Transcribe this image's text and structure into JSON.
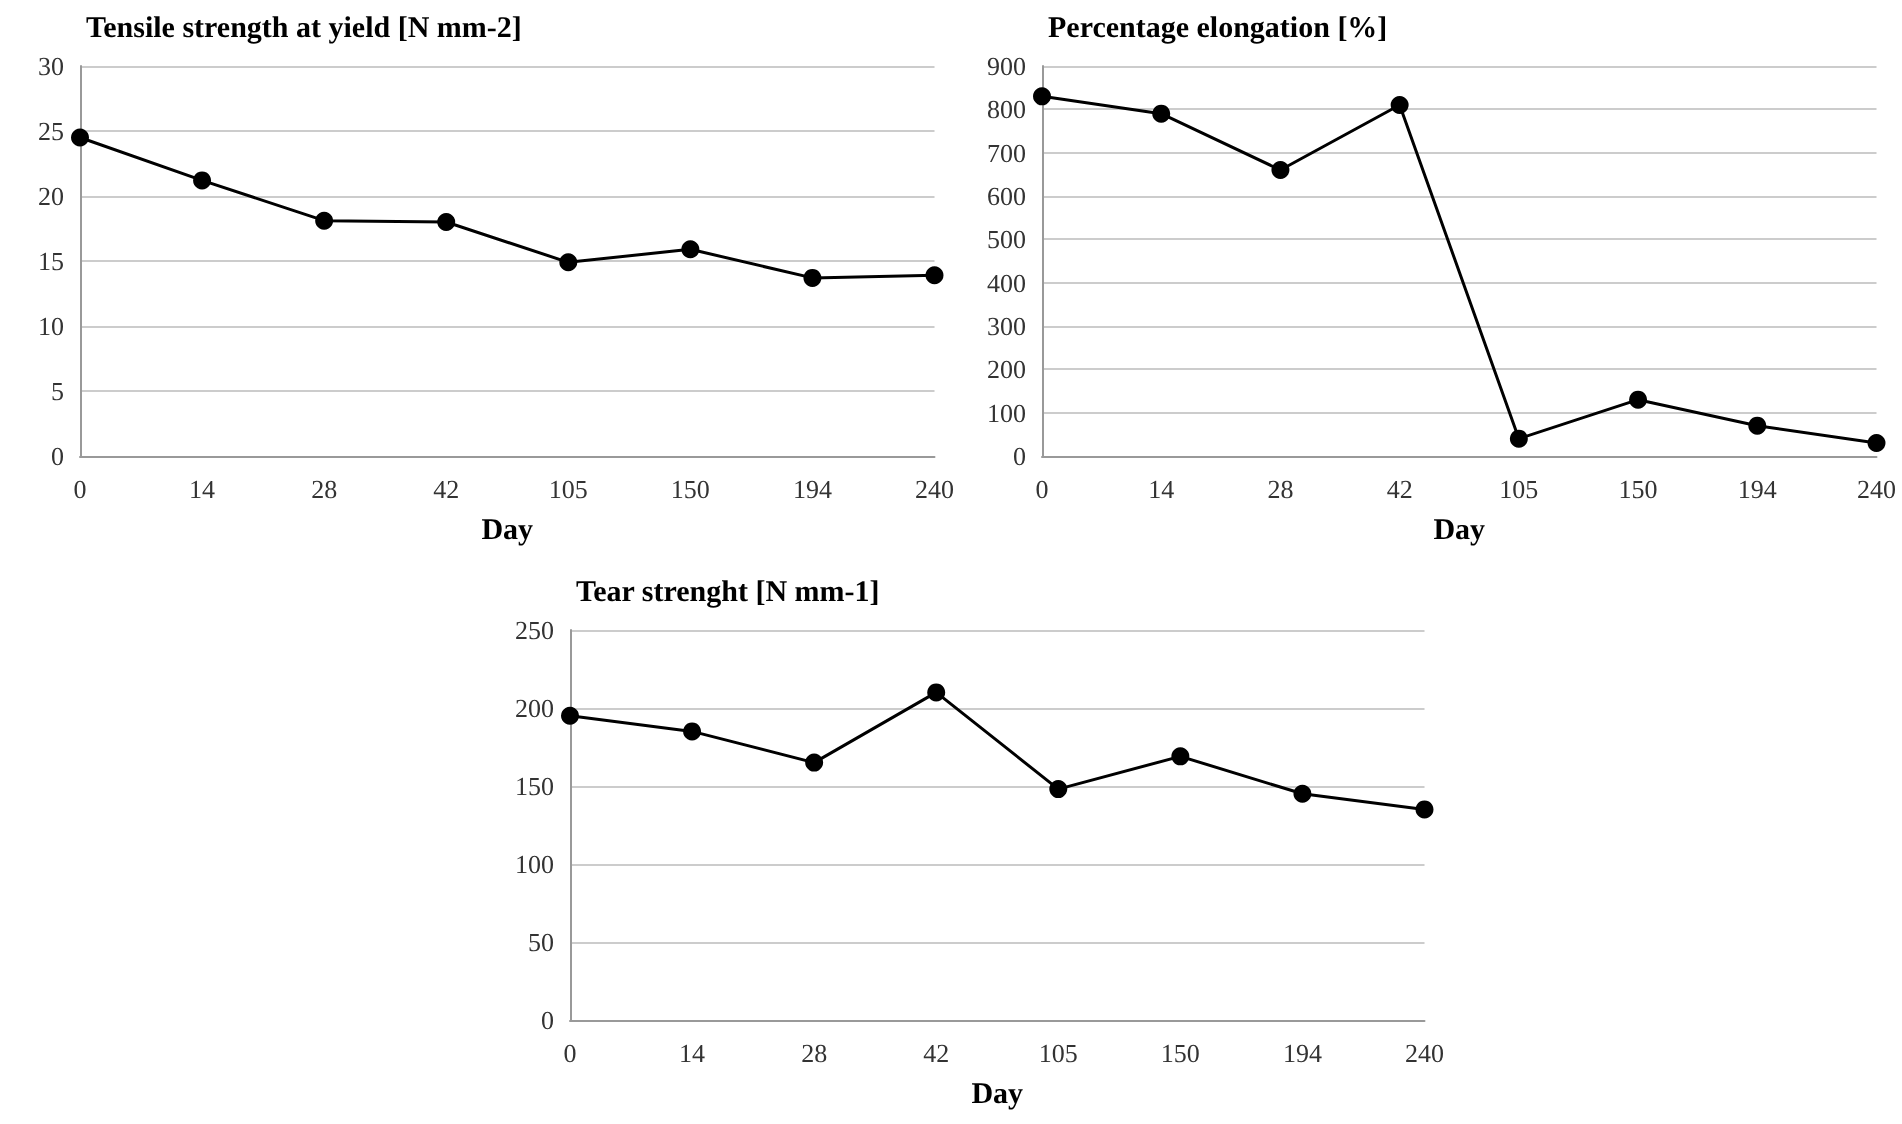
{
  "chart_data": [
    {
      "type": "line",
      "title": "Tensile strength at yield [N mm-2]",
      "xlabel": "Day",
      "categories": [
        "0",
        "14",
        "28",
        "42",
        "105",
        "150",
        "194",
        "240"
      ],
      "series": [
        {
          "color": "#000000",
          "values": [
            24.5,
            21.2,
            18.1,
            18.0,
            14.9,
            15.9,
            13.7,
            13.9
          ]
        }
      ],
      "ylim": [
        0,
        30
      ],
      "yticks": [
        0,
        5,
        10,
        15,
        20,
        25,
        30
      ],
      "grid": "y",
      "marker": "circle"
    },
    {
      "type": "line",
      "title": "Percentage elongation [%]",
      "xlabel": "Day",
      "categories": [
        "0",
        "14",
        "28",
        "42",
        "105",
        "150",
        "194",
        "240"
      ],
      "series": [
        {
          "color": "#000000",
          "values": [
            830,
            790,
            660,
            810,
            40,
            130,
            70,
            30
          ]
        }
      ],
      "ylim": [
        0,
        900
      ],
      "yticks": [
        0,
        100,
        200,
        300,
        400,
        500,
        600,
        700,
        800,
        900
      ],
      "grid": "y",
      "marker": "circle"
    },
    {
      "type": "line",
      "title": "Tear strenght [N mm-1]",
      "xlabel": "Day",
      "categories": [
        "0",
        "14",
        "28",
        "42",
        "105",
        "150",
        "194",
        "240"
      ],
      "series": [
        {
          "color": "#000000",
          "values": [
            195,
            185,
            165,
            210,
            148,
            169,
            145,
            135
          ]
        }
      ],
      "ylim": [
        0,
        250
      ],
      "yticks": [
        0,
        50,
        100,
        150,
        200,
        250
      ],
      "grid": "y",
      "marker": "circle"
    }
  ]
}
